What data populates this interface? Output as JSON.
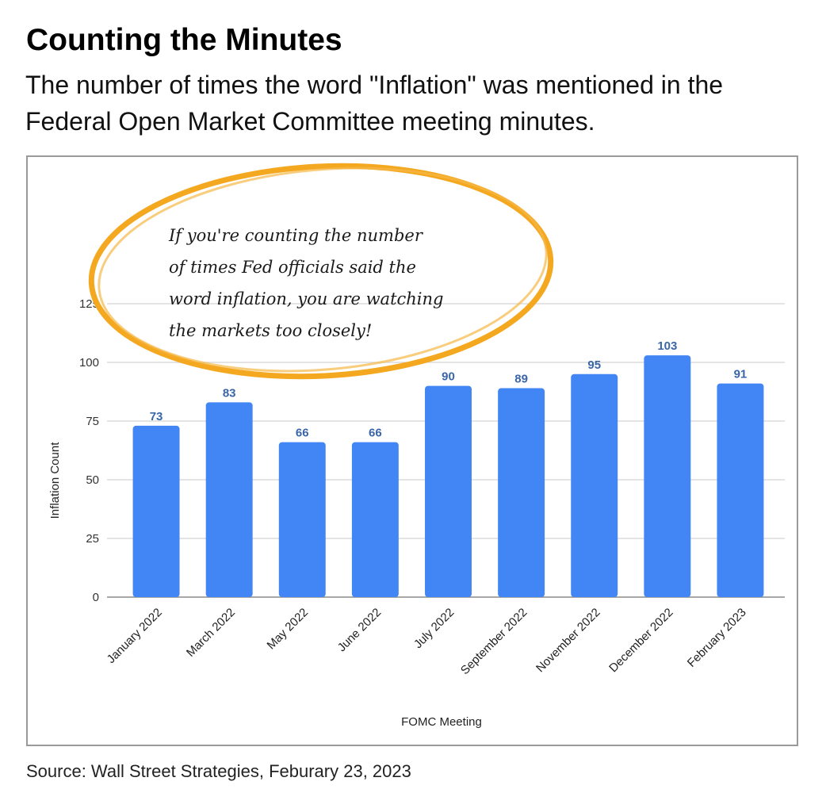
{
  "header": {
    "title": "Counting the Minutes",
    "subtitle": "The number of times the word \"Inflation\" was mentioned in the Federal Open Market Committee meeting minutes."
  },
  "annotation": {
    "lines": [
      "If you're counting the number",
      "of times Fed officials said the",
      "word inflation, you are watching",
      "the markets too closely!"
    ],
    "circle_color": "#f4a820"
  },
  "source": "Source: Wall Street Strategies, Feburary 23, 2023",
  "chart_data": {
    "type": "bar",
    "categories": [
      "January 2022",
      "March 2022",
      "May 2022",
      "June 2022",
      "July 2022",
      "September 2022",
      "November 2022",
      "December 2022",
      "February 2023"
    ],
    "values": [
      73,
      83,
      66,
      66,
      90,
      89,
      95,
      103,
      91
    ],
    "xlabel": "FOMC Meeting",
    "ylabel": "Inflation Count",
    "ylim": [
      0,
      125
    ],
    "yticks": [
      0,
      25,
      50,
      75,
      100,
      125
    ],
    "bar_color": "#4285f4",
    "label_color": "#3a66a8",
    "grid": true,
    "legend": "none"
  }
}
